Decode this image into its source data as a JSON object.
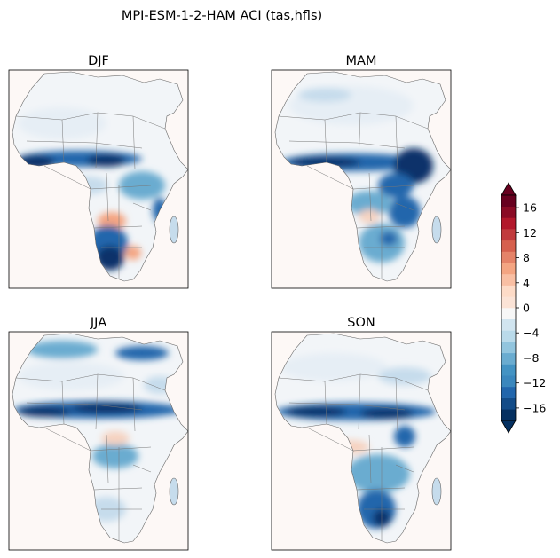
{
  "figure": {
    "title": "MPI-ESM-1-2-HAM ACI (tas,hfls)"
  },
  "panels": [
    {
      "id": "djf",
      "label": "DJF",
      "pattern": "djf"
    },
    {
      "id": "mam",
      "label": "MAM",
      "pattern": "mam"
    },
    {
      "id": "jja",
      "label": "JJA",
      "pattern": "jja"
    },
    {
      "id": "son",
      "label": "SON",
      "pattern": "son"
    }
  ],
  "colorbar": {
    "levels": [
      -18,
      -16,
      -14,
      -12,
      -10,
      -8,
      -6,
      -4,
      -2,
      -1,
      1,
      2,
      4,
      6,
      8,
      10,
      12,
      14,
      16,
      18
    ],
    "tick_labels": [
      "16",
      "12",
      "8",
      "4",
      "0",
      "−4",
      "−8",
      "−12",
      "−16"
    ],
    "extend": "both",
    "colors": [
      "#053061",
      "#134c88",
      "#2166ac",
      "#3a87bd",
      "#4393c3",
      "#6aacd0",
      "#92c5de",
      "#b9daea",
      "#d1e5f0",
      "#f7f7f7",
      "#fbe3d6",
      "#fddbc7",
      "#f9bfa3",
      "#f4a582",
      "#e58368",
      "#d6604d",
      "#c13b3d",
      "#b2182b",
      "#8a0b25",
      "#67001f"
    ]
  }
}
